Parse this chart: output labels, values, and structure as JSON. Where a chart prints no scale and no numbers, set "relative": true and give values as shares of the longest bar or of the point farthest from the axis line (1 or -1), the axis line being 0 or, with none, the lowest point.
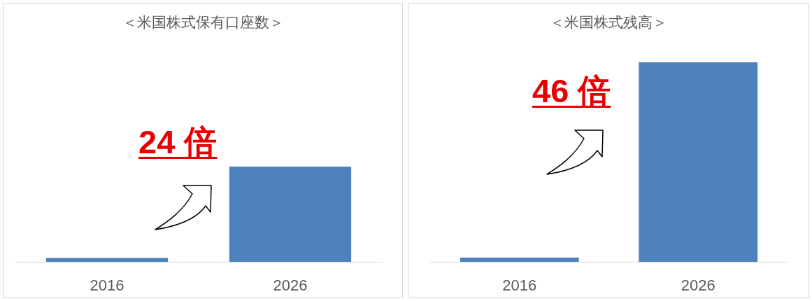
{
  "chart_data": [
    {
      "type": "bar",
      "title": "＜米国株式保有口座数＞",
      "categories": [
        "2016",
        "2026"
      ],
      "values": [
        0.04,
        1
      ],
      "color": "#4f81bd",
      "relative": true,
      "annotations": [
        "24 倍"
      ]
    },
    {
      "type": "bar",
      "title": "＜米国株式残高＞",
      "categories": [
        "2016",
        "2026"
      ],
      "values": [
        0.021,
        1
      ],
      "color": "#4f81bd",
      "relative": true,
      "annotations": [
        "46 倍"
      ]
    }
  ]
}
